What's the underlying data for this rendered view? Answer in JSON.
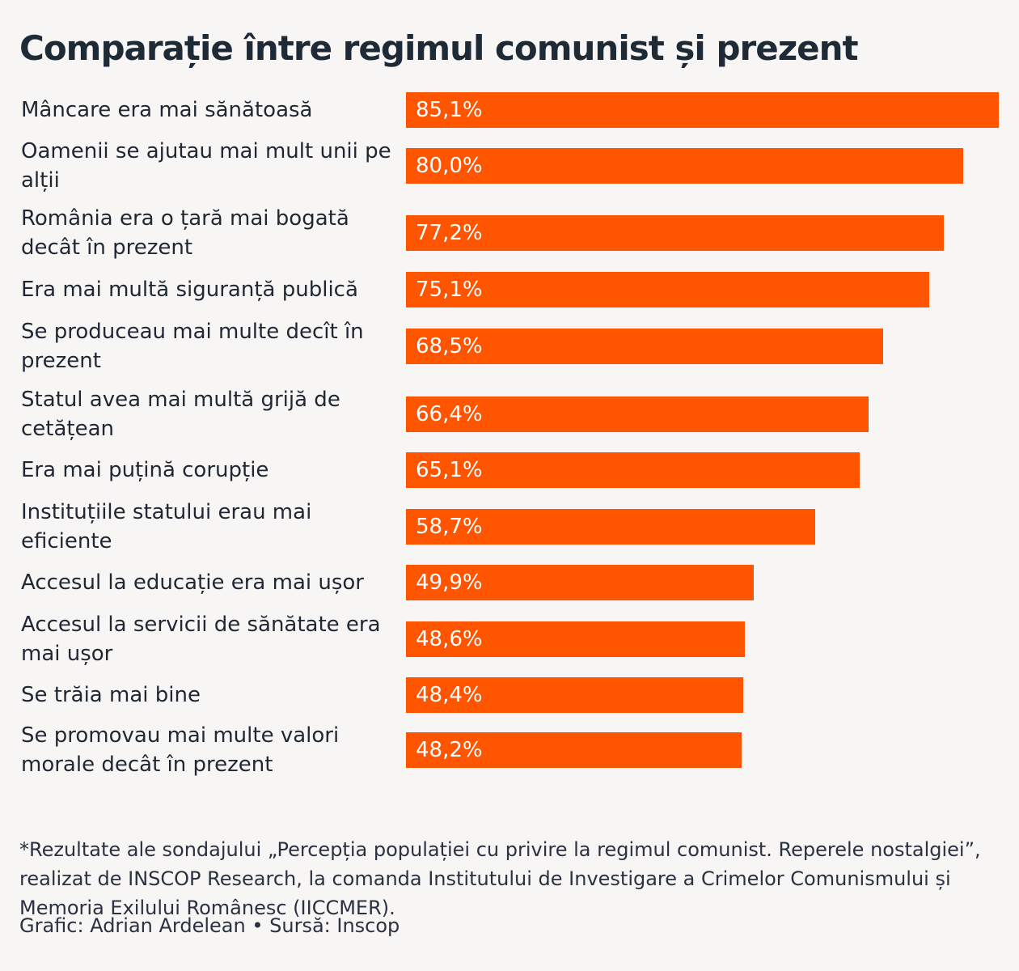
{
  "title": "Comparație între regimul comunist și prezent",
  "chart_data": {
    "type": "bar",
    "orientation": "horizontal",
    "title": "Comparație între regimul comunist și prezent",
    "unit": "%",
    "xlim": [
      0,
      85.1
    ],
    "categories": [
      "Mâncare era mai sănătoasă",
      "Oamenii se ajutau mai mult unii pe alții",
      "România era o țară mai bogată decât în prezent",
      "Era mai multă siguranță publică",
      "Se produceau mai multe decît în prezent",
      "Statul avea mai multă grijă de cetățean",
      "Era mai puțină corupție",
      "Instituțiile statului erau mai eficiente",
      "Accesul la educație era mai ușor",
      "Accesul la servicii de sănătate era mai ușor",
      "Se trăia mai bine",
      "Se promovau mai multe valori morale decât în prezent"
    ],
    "values": [
      85.1,
      80.0,
      77.2,
      75.1,
      68.5,
      66.4,
      65.1,
      58.7,
      49.9,
      48.6,
      48.4,
      48.2
    ],
    "value_labels": [
      "85,1%",
      "80,0%",
      "77,2%",
      "75,1%",
      "68,5%",
      "66,4%",
      "65,1%",
      "58,7%",
      "49,9%",
      "48,6%",
      "48,4%",
      "48,2%"
    ],
    "bar_color": "#ff5500"
  },
  "footnote": "*Rezultate ale sondajului „Percepția populației cu privire la regimul comunist. Reperele nostalgiei”, realizat de INSCOP Research, la comanda Institutului de Investigare a Crimelor Comunismului și Memoria Exilului Românesc (IICCMER).",
  "credit": "Grafic: Adrian Ardelean • Sursă: Inscop"
}
